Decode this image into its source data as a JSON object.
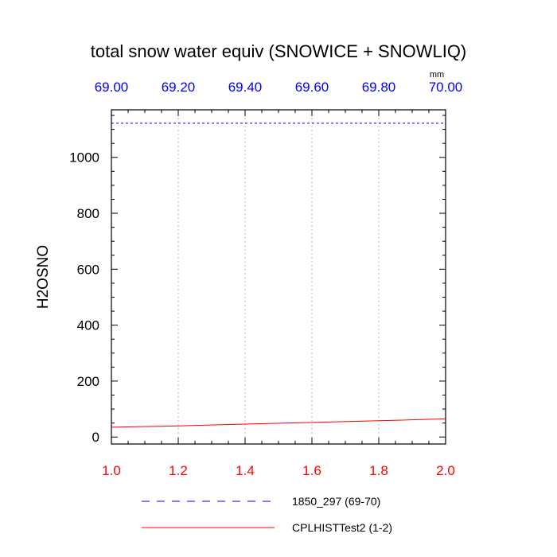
{
  "chart_data": {
    "type": "line",
    "title": "total snow water equiv (SNOWICE + SNOWLIQ)",
    "ylabel": "H2OSNO",
    "units": "mm",
    "bottom_axis": {
      "range": [
        1.0,
        2.0
      ],
      "ticks": [
        1.0,
        1.2,
        1.4,
        1.6,
        1.8,
        2.0
      ],
      "tick_labels": [
        "1.0",
        "1.2",
        "1.4",
        "1.6",
        "1.8",
        "2.0"
      ],
      "color": "#ff0000"
    },
    "top_axis": {
      "range": [
        69.0,
        70.0
      ],
      "ticks": [
        69.0,
        69.2,
        69.4,
        69.6,
        69.8,
        70.0
      ],
      "tick_labels": [
        "69.00",
        "69.20",
        "69.40",
        "69.60",
        "69.80",
        "70.00"
      ],
      "color": "#0000ff"
    },
    "y_axis": {
      "range": [
        -25,
        1170
      ],
      "ticks": [
        0,
        200,
        400,
        600,
        800,
        1000
      ],
      "tick_labels": [
        "0",
        "200",
        "400",
        "600",
        "800",
        "1000"
      ]
    },
    "grid": "vertical dotted",
    "legend_position": "bottom",
    "series": [
      {
        "name": "1850_297 (69-70)",
        "axis": "top",
        "color": "#0000ff",
        "dash": "dashed",
        "x": [
          69.0,
          70.0
        ],
        "y": [
          1122,
          1122
        ]
      },
      {
        "name": "CPLHISTTest2 (1-2)",
        "axis": "bottom",
        "color": "#ff0000",
        "dash": "solid",
        "x": [
          1.0,
          1.2,
          1.4,
          1.6,
          1.8,
          2.0
        ],
        "y": [
          35,
          40,
          46,
          52,
          58,
          65
        ]
      }
    ]
  }
}
